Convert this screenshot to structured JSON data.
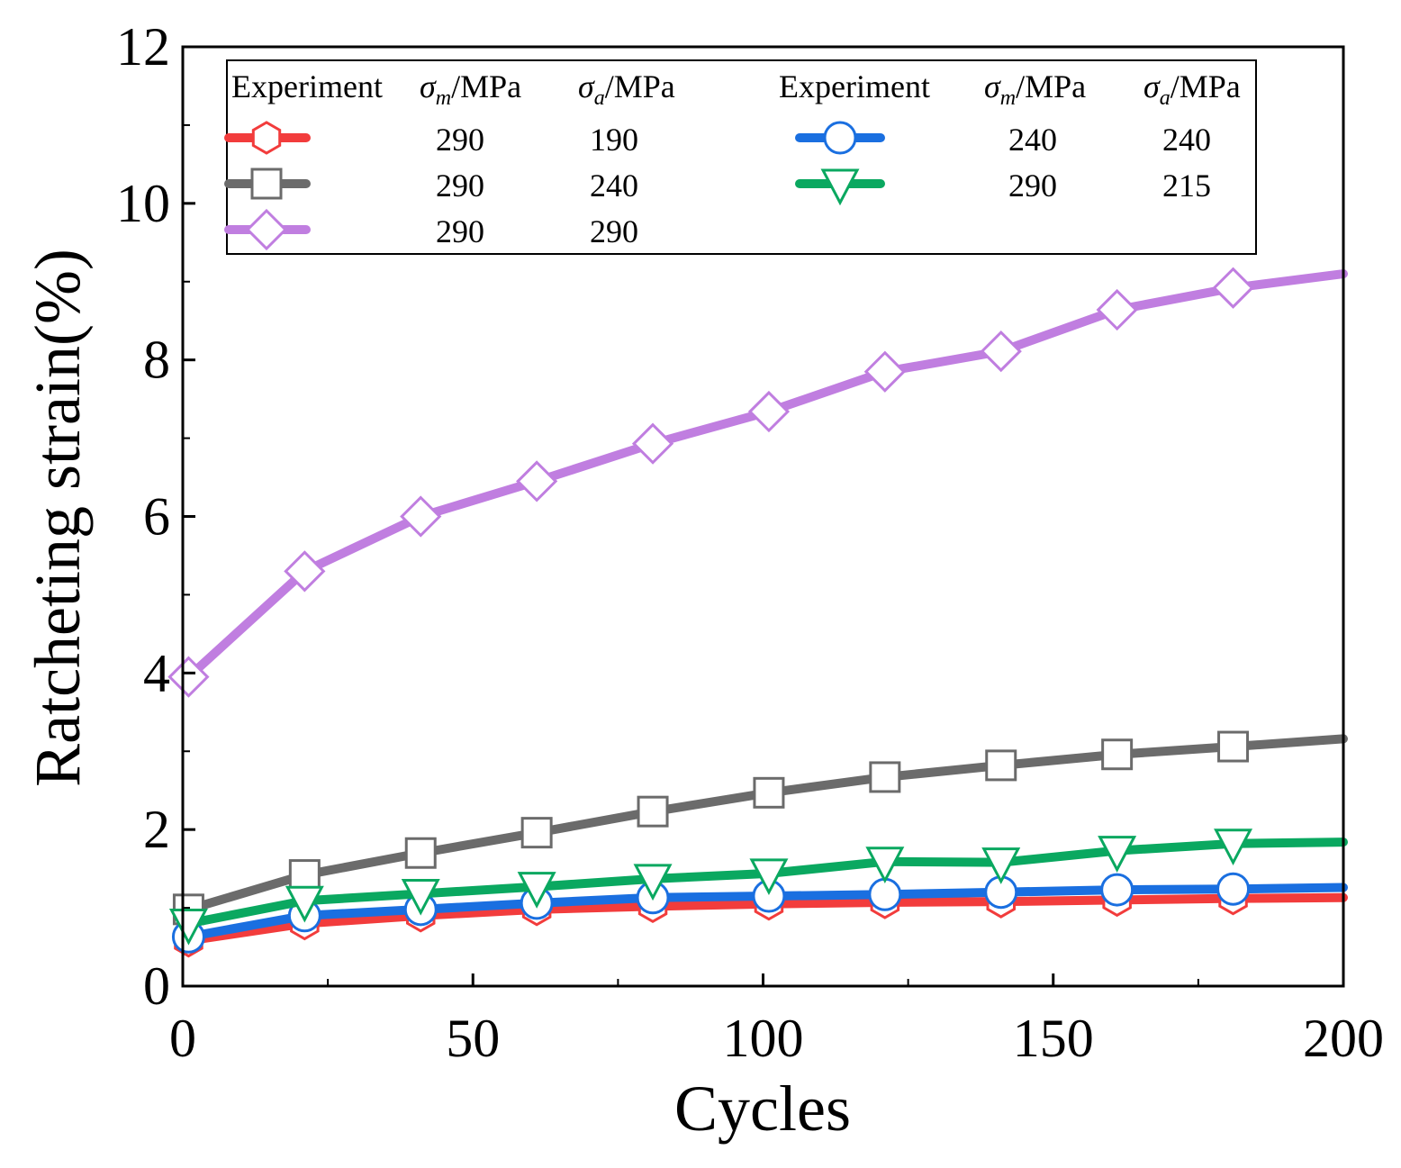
{
  "chart_data": {
    "type": "line",
    "title": "",
    "xlabel": "Cycles",
    "ylabel": "Ratcheting strain(%)",
    "xlim": [
      0,
      200
    ],
    "ylim": [
      0,
      12
    ],
    "xticks": [
      0,
      50,
      100,
      150,
      200
    ],
    "xtick_labels": [
      "0",
      "50",
      "100",
      "150",
      "200"
    ],
    "yticks": [
      0,
      2,
      4,
      6,
      8,
      10,
      12
    ],
    "ytick_labels": [
      "0",
      "2",
      "4",
      "6",
      "8",
      "10",
      "12"
    ],
    "grid": false,
    "legend_position": "top",
    "legend": {
      "header": {
        "experiment": "Experiment",
        "sigma_m": {
          "sym": "σ",
          "sub": "m",
          "unit": "/MPa"
        },
        "sigma_a": {
          "sym": "σ",
          "sub": "a",
          "unit": "/MPa"
        }
      }
    },
    "x": [
      1,
      21,
      41,
      61,
      81,
      101,
      121,
      141,
      161,
      181,
      200
    ],
    "series": [
      {
        "name": "290/190",
        "sigma_m": "290",
        "sigma_a": "190",
        "color": "#f23c3c",
        "marker": "hexagon",
        "values": [
          0.58,
          0.8,
          0.9,
          0.98,
          1.02,
          1.05,
          1.07,
          1.08,
          1.1,
          1.12,
          1.13
        ]
      },
      {
        "name": "290/240",
        "sigma_m": "290",
        "sigma_a": "240",
        "color": "#6b6b6b",
        "marker": "square",
        "values": [
          0.98,
          1.42,
          1.7,
          1.96,
          2.23,
          2.47,
          2.67,
          2.82,
          2.96,
          3.06,
          3.16
        ]
      },
      {
        "name": "290/290",
        "sigma_m": "290",
        "sigma_a": "290",
        "color": "#c07ee0",
        "marker": "diamond",
        "values": [
          3.95,
          5.3,
          6.0,
          6.45,
          6.93,
          7.34,
          7.85,
          8.11,
          8.64,
          8.92,
          9.1
        ]
      },
      {
        "name": "240/240",
        "sigma_m": "240",
        "sigma_a": "240",
        "color": "#1a6fe0",
        "marker": "circle",
        "values": [
          0.63,
          0.9,
          0.98,
          1.06,
          1.13,
          1.15,
          1.17,
          1.2,
          1.23,
          1.24,
          1.26
        ]
      },
      {
        "name": "290/215",
        "sigma_m": "290",
        "sigma_a": "215",
        "color": "#0aa860",
        "marker": "triangle-down",
        "values": [
          0.8,
          1.09,
          1.18,
          1.27,
          1.37,
          1.44,
          1.59,
          1.58,
          1.73,
          1.82,
          1.84
        ]
      }
    ]
  }
}
